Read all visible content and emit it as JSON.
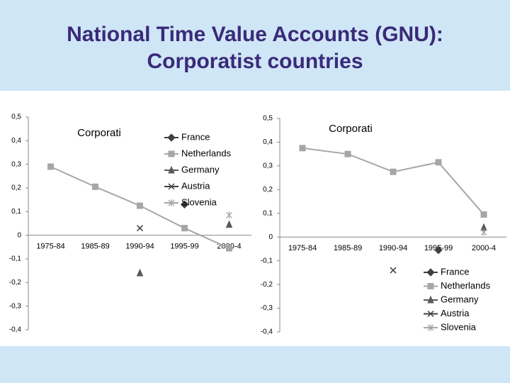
{
  "page_title": [
    "National Time Value Accounts (GNU):",
    "Corporatist countries"
  ],
  "chart_data": [
    {
      "type": "line",
      "title": "Corporati",
      "categories": [
        "1975-84",
        "1985-89",
        "1990-94",
        "1995-99",
        "2000-4"
      ],
      "series": [
        {
          "name": "France",
          "color": "#404040",
          "marker": "diamond",
          "values": [
            null,
            null,
            null,
            0.13,
            null
          ]
        },
        {
          "name": "Netherlands",
          "color": "#a6a6a6",
          "marker": "square",
          "values": [
            0.29,
            0.205,
            0.125,
            0.03,
            -0.055
          ]
        },
        {
          "name": "Germany",
          "color": "#595959",
          "marker": "triangle",
          "values": [
            null,
            null,
            -0.16,
            null,
            0.045
          ]
        },
        {
          "name": "Austria",
          "color": "#404040",
          "marker": "x",
          "values": [
            null,
            null,
            0.03,
            null,
            null
          ]
        },
        {
          "name": "Slovenia",
          "color": "#a6a6a6",
          "marker": "asterisk",
          "values": [
            null,
            null,
            null,
            null,
            0.085
          ]
        }
      ],
      "ylim": [
        -0.4,
        0.5
      ],
      "yticks": [
        {
          "value": -0.4,
          "label": "-0,4"
        },
        {
          "value": -0.3,
          "label": "-0,3"
        },
        {
          "value": -0.2,
          "label": "-0,2"
        },
        {
          "value": -0.1,
          "label": "-0,1"
        },
        0,
        {
          "value": 0.1,
          "label": "0,1"
        },
        {
          "value": 0.2,
          "label": "0,2"
        },
        {
          "value": 0.3,
          "label": "0,3"
        },
        {
          "value": 0.4,
          "label": "0,4"
        },
        {
          "value": 0.5,
          "label": "0,5"
        }
      ],
      "legend": "top-right"
    },
    {
      "type": "line",
      "title": "Corporati",
      "categories": [
        "1975-84",
        "1985-89",
        "1990-94",
        "1995-99",
        "2000-4"
      ],
      "series": [
        {
          "name": "France",
          "color": "#404040",
          "marker": "diamond",
          "values": [
            null,
            null,
            null,
            -0.055,
            null
          ]
        },
        {
          "name": "Netherlands",
          "color": "#a6a6a6",
          "marker": "square",
          "values": [
            0.375,
            0.35,
            0.275,
            0.315,
            0.095
          ]
        },
        {
          "name": "Germany",
          "color": "#595959",
          "marker": "triangle",
          "values": [
            null,
            null,
            null,
            null,
            0.04
          ]
        },
        {
          "name": "Austria",
          "color": "#404040",
          "marker": "x",
          "values": [
            null,
            null,
            -0.14,
            null,
            null
          ]
        },
        {
          "name": "Slovenia",
          "color": "#a6a6a6",
          "marker": "asterisk",
          "values": [
            null,
            null,
            null,
            null,
            0.02
          ]
        }
      ],
      "ylim": [
        -0.4,
        0.5
      ],
      "yticks": [
        {
          "value": -0.4,
          "label": "-0,4"
        },
        {
          "value": -0.3,
          "label": "-0,3"
        },
        {
          "value": -0.2,
          "label": "-0,2"
        },
        {
          "value": -0.1,
          "label": "-0,1"
        },
        0,
        {
          "value": 0.1,
          "label": "0,1"
        },
        {
          "value": 0.2,
          "label": "0,2"
        },
        {
          "value": 0.3,
          "label": "0,3"
        },
        {
          "value": 0.4,
          "label": "0,4"
        },
        {
          "value": 0.5,
          "label": "0,5"
        }
      ],
      "legend": "bottom-right"
    }
  ]
}
